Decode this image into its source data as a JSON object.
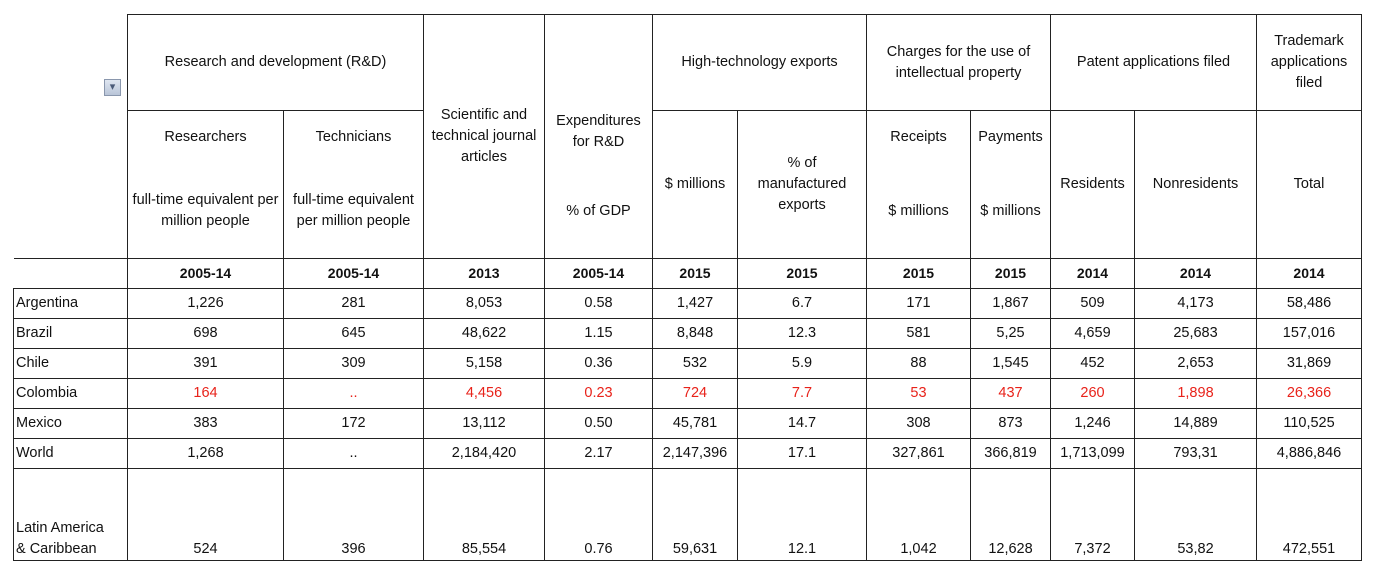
{
  "headers": {
    "rd": "Research and development (R&D)",
    "researchers": "Researchers",
    "technicians": "Technicians",
    "researchers_unit": "full-time equivalent per million people",
    "technicians_unit": "full-time equivalent per million people",
    "articles": "Scientific and technical journal articles",
    "expenditures": "Expenditures for R&D",
    "expenditures_unit": "% of GDP",
    "hightech": "High-technology exports",
    "hightech_millions": "$ millions",
    "hightech_pct": "% of manufactured exports",
    "ip": "Charges for the use of intellectual property",
    "receipts": "Receipts",
    "receipts_unit": "$ millions",
    "payments": "Payments",
    "payments_unit": "$ millions",
    "patents": "Patent applications filed",
    "residents": "Residents",
    "nonresidents": "Nonresidents",
    "trademark": "Trademark applications filed",
    "trademark_total": "Total"
  },
  "years": [
    "2005-14",
    "2005-14",
    "2013",
    "2005-14",
    "2015",
    "2015",
    "2015",
    "2015",
    "2014",
    "2014",
    "2014"
  ],
  "rows": [
    {
      "country": "Argentina",
      "values": [
        "1,226",
        "281",
        "8,053",
        "0.58",
        "1,427",
        "6.7",
        "171",
        "1,867",
        "509",
        "4,173",
        "58,486"
      ]
    },
    {
      "country": "Brazil",
      "values": [
        "698",
        "645",
        "48,622",
        "1.15",
        "8,848",
        "12.3",
        "581",
        "5,25",
        "4,659",
        "25,683",
        "157,016"
      ]
    },
    {
      "country": "Chile",
      "values": [
        "391",
        "309",
        "5,158",
        "0.36",
        "532",
        "5.9",
        "88",
        "1,545",
        "452",
        "2,653",
        "31,869"
      ]
    },
    {
      "country": "Colombia",
      "values": [
        "164",
        "..",
        "4,456",
        "0.23",
        "724",
        "7.7",
        "53",
        "437",
        "260",
        "1,898",
        "26,366"
      ]
    },
    {
      "country": "Mexico",
      "values": [
        "383",
        "172",
        "13,112",
        "0.50",
        "45,781",
        "14.7",
        "308",
        "873",
        "1,246",
        "14,889",
        "110,525"
      ]
    },
    {
      "country": "World",
      "values": [
        "1,268",
        "..",
        "2,184,420",
        "2.17",
        "2,147,396",
        "17.1",
        "327,861",
        "366,819",
        "1,713,099",
        "793,31",
        "4,886,846"
      ]
    }
  ],
  "last_row": {
    "country_line1": "Latin America",
    "country_line2": "& Caribbean",
    "values": [
      "524",
      "396",
      "85,554",
      "0.76",
      "59,631",
      "12.1",
      "1,042",
      "12,628",
      "7,372",
      "53,82",
      "472,551"
    ]
  },
  "highlight_color": "#e8221a",
  "filter_icon": "filter-dropdown-icon"
}
